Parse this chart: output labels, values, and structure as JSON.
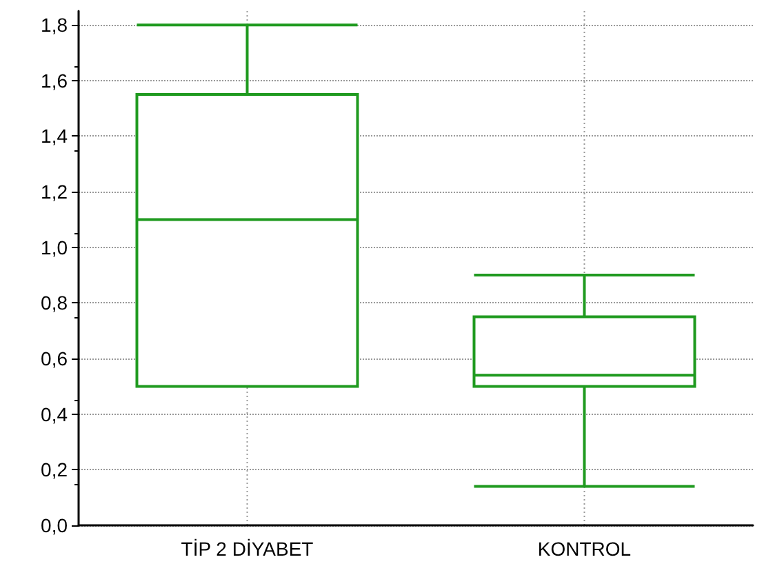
{
  "chart_data": {
    "type": "box",
    "categories": [
      "TİP 2 DİYABET",
      "KONTROL"
    ],
    "color": "#1f9a1f",
    "boxes": [
      {
        "low": 0.5,
        "q1": 0.5,
        "median": 1.1,
        "q3": 1.55,
        "high": 1.8
      },
      {
        "low": 0.14,
        "q1": 0.5,
        "median": 0.54,
        "q3": 0.75,
        "high": 0.9
      }
    ],
    "ylim": [
      0,
      1.85
    ],
    "yticks": [
      {
        "value": 0,
        "label": "0,0"
      },
      {
        "value": 0.2,
        "label": "0,2"
      },
      {
        "value": 0.4,
        "label": "0,4"
      },
      {
        "value": 0.6,
        "label": "0,6"
      },
      {
        "value": 0.8,
        "label": "0,8"
      },
      {
        "value": 1,
        "label": "1,0"
      },
      {
        "value": 1.2,
        "label": "1,2"
      },
      {
        "value": 1.4,
        "label": "1,4"
      },
      {
        "value": 1.6,
        "label": "1,6"
      },
      {
        "value": 1.8,
        "label": "1,8"
      }
    ],
    "grid": true
  }
}
